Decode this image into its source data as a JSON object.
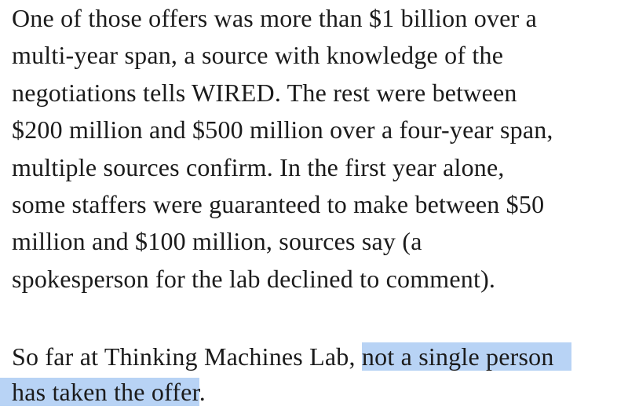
{
  "paragraphs": [
    {
      "lines": [
        "One of those offers was more than $1 billion over a",
        "multi-year span, a source with knowledge of the",
        "negotiations tells WIRED. The rest were between",
        "$200 million and $500 million over a four-year span,",
        "multiple sources confirm. In the first year alone,",
        "some staffers were guaranteed to make between $50",
        "million and $100 million, sources say (a",
        "spokesperson for the lab declined to comment)."
      ]
    },
    {
      "line1_plain": "So far at Thinking Machines Lab, ",
      "line1_highlighted": "not a single person",
      "line2_highlighted": "has taken the offer",
      "line2_plain": "."
    }
  ],
  "colors": {
    "text": "#1b1b1b",
    "highlight": "#b8d3f5",
    "background": "#ffffff"
  }
}
